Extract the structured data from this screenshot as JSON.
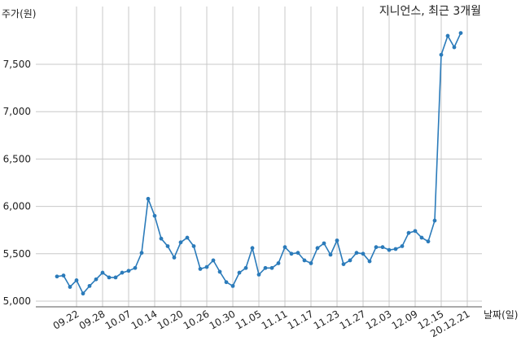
{
  "chart_data": {
    "type": "line",
    "title": "지니언스, 최근 3개월",
    "xlabel": "날짜(일)",
    "ylabel": "주가(원)",
    "ylim": [
      4950,
      7950
    ],
    "y_ticks": [
      5000,
      5500,
      6000,
      6500,
      7000,
      7500
    ],
    "y_tick_labels": [
      "5,000",
      "5,500",
      "6,000",
      "6,500",
      "7,000",
      "7,500"
    ],
    "x_tick_labels": [
      "09.22",
      "09.28",
      "10.07",
      "10.14",
      "10.20",
      "10.26",
      "10.30",
      "11.05",
      "11.11",
      "11.17",
      "11.23",
      "11.27",
      "12.03",
      "12.09",
      "12.15",
      "20.12.21"
    ],
    "x_tick_indices": [
      3,
      7,
      11,
      15,
      19,
      23,
      27,
      31,
      35,
      39,
      43,
      47,
      51,
      55,
      59,
      63
    ],
    "grid": true,
    "series": [
      {
        "values": [
          5260,
          5270,
          5150,
          5220,
          5080,
          5160,
          5230,
          5300,
          5250,
          5250,
          5300,
          5320,
          5350,
          5510,
          6080,
          5900,
          5660,
          5580,
          5460,
          5620,
          5670,
          5580,
          5340,
          5360,
          5430,
          5310,
          5200,
          5160,
          5300,
          5350,
          5560,
          5280,
          5350,
          5350,
          5400,
          5570,
          5500,
          5510,
          5430,
          5400,
          5560,
          5610,
          5490,
          5640,
          5390,
          5430,
          5510,
          5500,
          5420,
          5570,
          5570,
          5540,
          5550,
          5580,
          5720,
          5740,
          5670,
          5630,
          5850,
          7600,
          7800,
          7680,
          7830
        ]
      }
    ]
  }
}
